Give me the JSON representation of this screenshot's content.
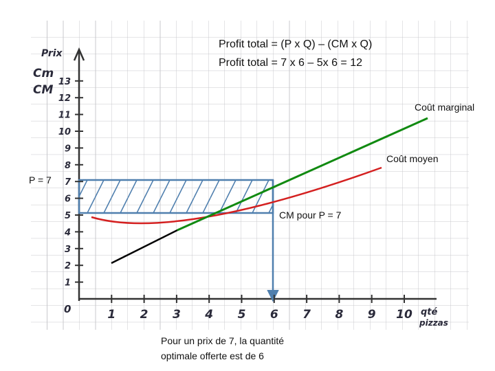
{
  "annotations": {
    "formula": "Profit total = (P x Q) – (CM x Q)",
    "calculation": "Profit total = 7 x 6 – 5x 6 = 12",
    "marginal_cost": "Coût marginal",
    "average_cost": "Coût moyen",
    "price": "P = 7",
    "average_cost_at_price": "CM pour P = 7",
    "conclusion": [
      "Pour un prix de 7, la quantité",
      "optimale offerte est de 6"
    ]
  },
  "axes": {
    "y_label": [
      "Prix",
      "Cm",
      "CM"
    ],
    "x_label": [
      "qté",
      "pizzas"
    ],
    "origin": "0",
    "y_ticks": [
      "1",
      "2",
      "3",
      "4",
      "5",
      "6",
      "7",
      "8",
      "9",
      "10",
      "11",
      "12",
      "13"
    ],
    "x_ticks": [
      "1",
      "2",
      "3",
      "4",
      "5",
      "6",
      "7",
      "8",
      "9",
      "10"
    ]
  }
}
